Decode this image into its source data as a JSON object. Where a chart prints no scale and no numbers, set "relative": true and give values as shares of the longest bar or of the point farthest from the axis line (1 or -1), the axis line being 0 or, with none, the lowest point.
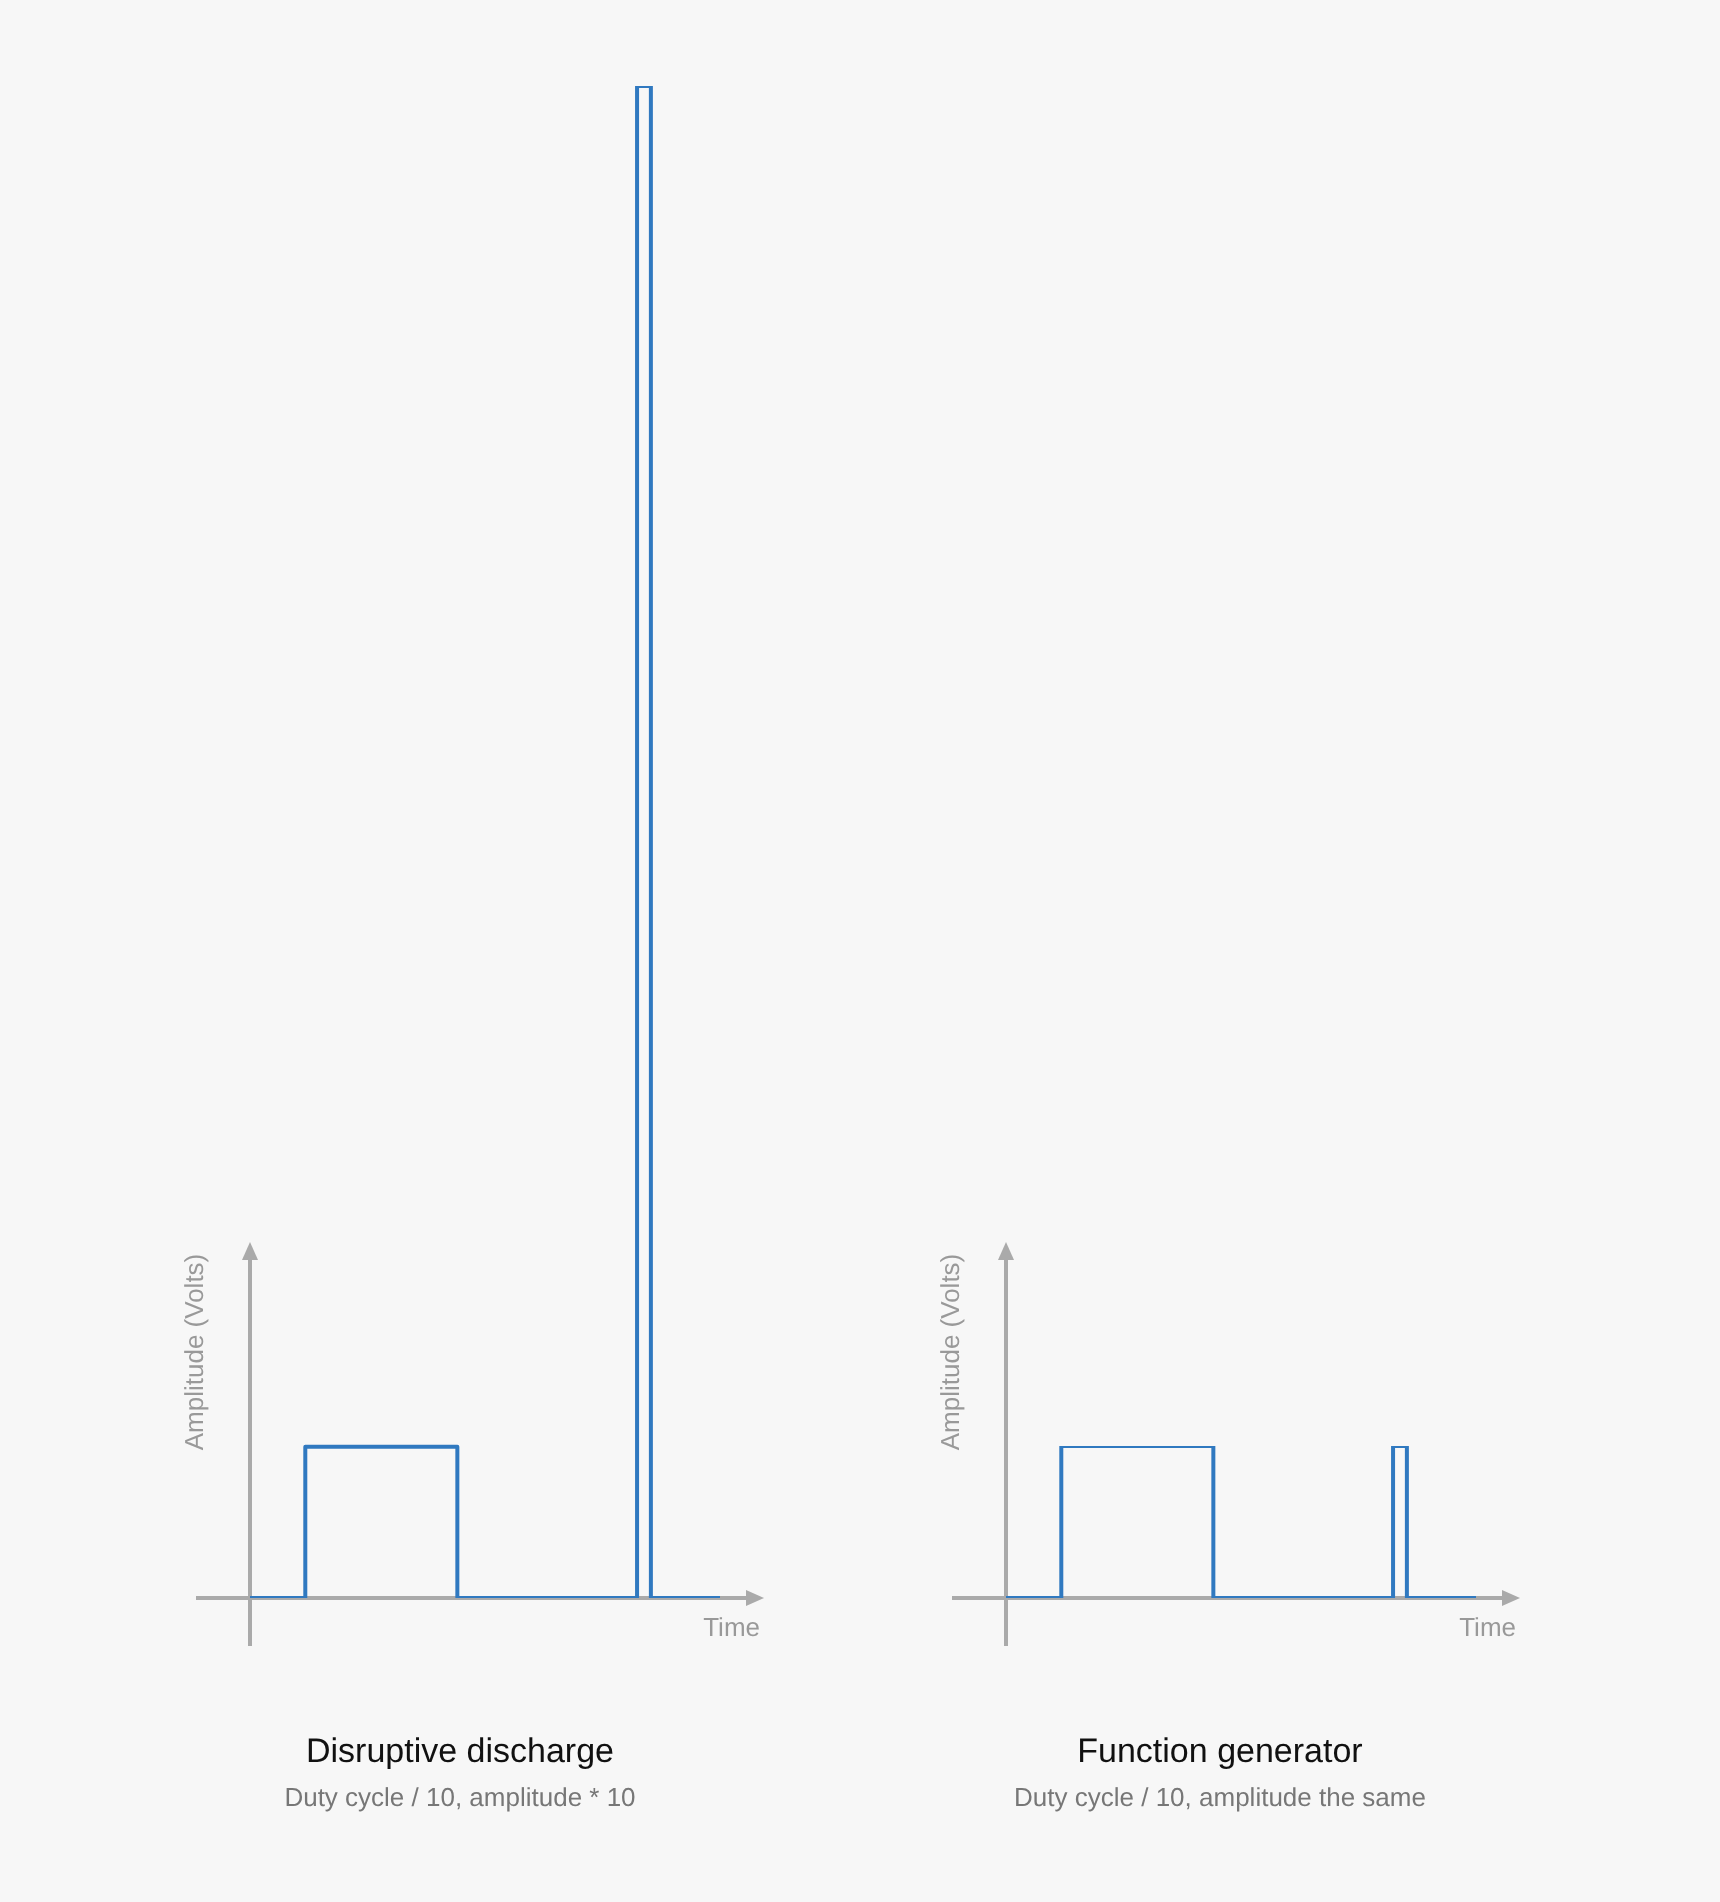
{
  "chart_data": [
    {
      "type": "step",
      "relative": true,
      "title": "Disruptive discharge",
      "subtitle": "Duty cycle / 10, amplitude * 10",
      "xlabel": "Time",
      "ylabel": "Amplitude (Volts)",
      "color": "#3079c0",
      "categories": [
        null,
        null,
        null,
        null,
        null,
        null,
        null,
        null,
        null,
        null,
        null,
        null,
        null,
        null,
        null,
        null,
        null,
        null,
        null,
        null,
        null,
        null,
        null,
        null,
        null,
        null,
        null,
        null,
        null,
        null,
        null,
        null,
        null,
        null,
        null
      ],
      "values": [
        0,
        0,
        0,
        0,
        0.1,
        0.1,
        0.1,
        0.1,
        0.1,
        0.1,
        0.1,
        0.1,
        0.1,
        0.1,
        0.1,
        0,
        0,
        0,
        0,
        0,
        0,
        0,
        0,
        0,
        0,
        0,
        0,
        0,
        1,
        0,
        0,
        0,
        0,
        0,
        0
      ]
    },
    {
      "type": "step",
      "relative": true,
      "title": "Function generator",
      "subtitle": "Duty cycle / 10, amplitude the same",
      "xlabel": "Time",
      "ylabel": "Amplitude (Volts)",
      "color": "#3079c0",
      "categories": [
        null,
        null,
        null,
        null,
        null,
        null,
        null,
        null,
        null,
        null,
        null,
        null,
        null,
        null,
        null,
        null,
        null,
        null,
        null,
        null,
        null,
        null,
        null,
        null,
        null,
        null,
        null,
        null,
        null,
        null,
        null,
        null,
        null,
        null,
        null
      ],
      "values": [
        0,
        0,
        0,
        0,
        1,
        1,
        1,
        1,
        1,
        1,
        1,
        1,
        1,
        1,
        1,
        0,
        0,
        0,
        0,
        0,
        0,
        0,
        0,
        0,
        0,
        0,
        0,
        0,
        1,
        0,
        0,
        0,
        0,
        0,
        0
      ]
    }
  ]
}
